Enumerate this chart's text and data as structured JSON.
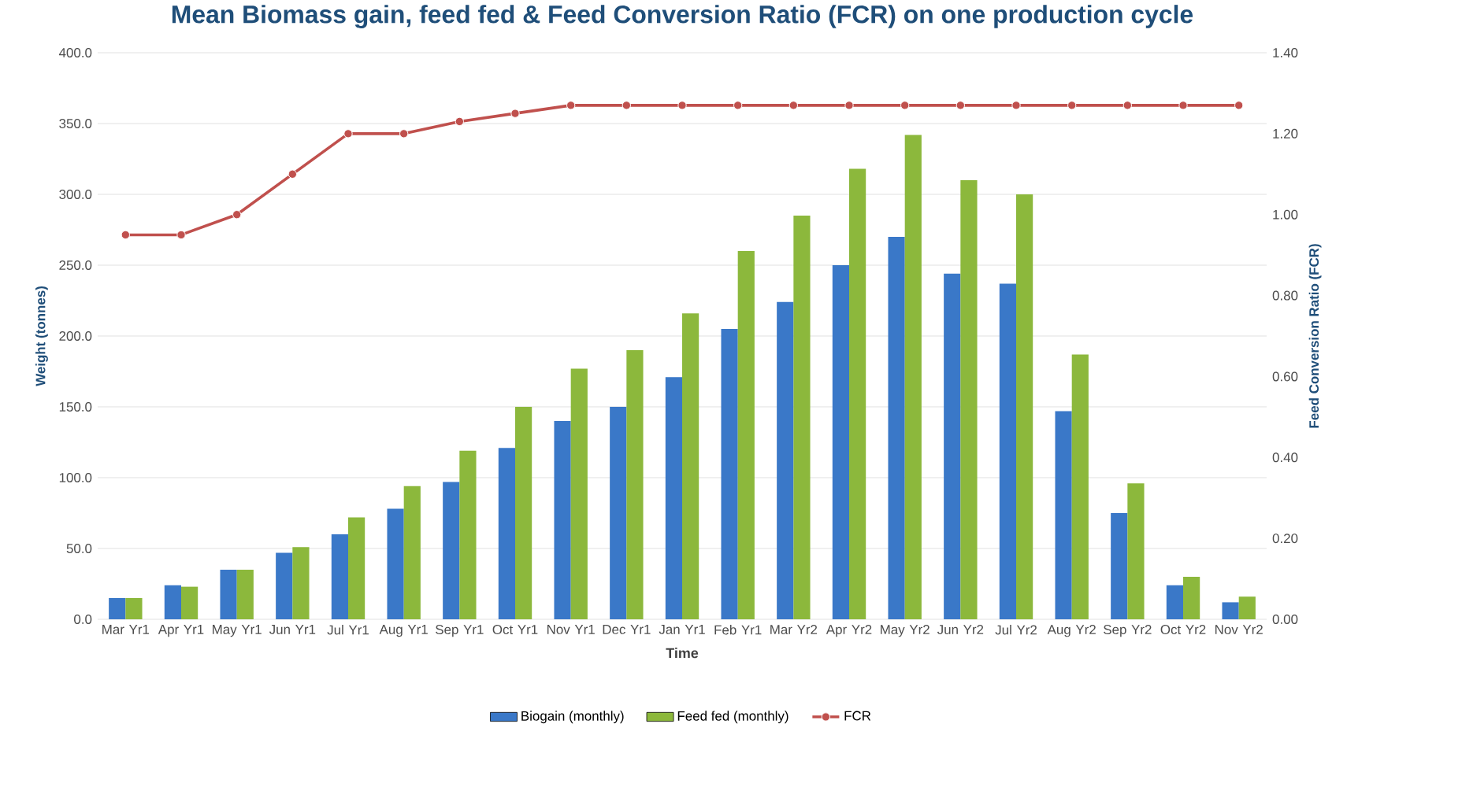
{
  "chart_data": {
    "type": "bar",
    "title": "Mean Biomass gain, feed fed & Feed Conversion Ratio (FCR) on one production cycle",
    "xlabel": "Time",
    "ylabel": "Weight (tonnes)",
    "y2label": "Feed Conversion Ratio (FCR)",
    "categories": [
      "Mar Yr1",
      "Apr Yr1",
      "May Yr1",
      "Jun Yr1",
      "Jul Yr1",
      "Aug Yr1",
      "Sep Yr1",
      "Oct Yr1",
      "Nov Yr1",
      "Dec Yr1",
      "Jan Yr1",
      "Feb Yr1",
      "Mar Yr2",
      "Apr Yr2",
      "May Yr2",
      "Jun Yr2",
      "Jul Yr2",
      "Aug Yr2",
      "Sep Yr2",
      "Oct Yr2",
      "Nov Yr2"
    ],
    "series": [
      {
        "name": "Biogain (monthly)",
        "color": "#3a78c8",
        "values": [
          15,
          24,
          35,
          47,
          60,
          78,
          97,
          121,
          140,
          150,
          171,
          205,
          224,
          250,
          270,
          244,
          237,
          147,
          75,
          24,
          12
        ]
      },
      {
        "name": "Feed fed (monthly)",
        "color": "#8cb83c",
        "values": [
          15,
          23,
          35,
          51,
          72,
          94,
          119,
          150,
          177,
          190,
          216,
          260,
          285,
          318,
          342,
          310,
          300,
          187,
          96,
          30,
          16
        ]
      },
      {
        "name": "FCR",
        "type": "line",
        "axis": "y2",
        "color": "#c0504d",
        "marker": "circle",
        "values": [
          0.95,
          0.95,
          1.0,
          1.1,
          1.2,
          1.2,
          1.23,
          1.25,
          1.27,
          1.27,
          1.27,
          1.27,
          1.27,
          1.27,
          1.27,
          1.27,
          1.27,
          1.27,
          1.27,
          1.27,
          1.27
        ]
      }
    ],
    "ylim": [
      0,
      400
    ],
    "yticks": [
      {
        "value": 0,
        "label": "0.0"
      },
      {
        "value": 50,
        "label": "50.0"
      },
      {
        "value": 100,
        "label": "100.0"
      },
      {
        "value": 150,
        "label": "150.0"
      },
      {
        "value": 200,
        "label": "200.0"
      },
      {
        "value": 250,
        "label": "250.0"
      },
      {
        "value": 300,
        "label": "300.0"
      },
      {
        "value": 350,
        "label": "350.0"
      },
      {
        "value": 400,
        "label": "400.0"
      }
    ],
    "y2lim": [
      0,
      1.4
    ],
    "y2ticks": [
      {
        "value": 0,
        "label": "0.00"
      },
      {
        "value": 0.2,
        "label": "0.20"
      },
      {
        "value": 0.4,
        "label": "0.40"
      },
      {
        "value": 0.6,
        "label": "0.60"
      },
      {
        "value": 0.8,
        "label": "0.80"
      },
      {
        "value": 1.0,
        "label": "1.00"
      },
      {
        "value": 1.2,
        "label": "1.20"
      },
      {
        "value": 1.4,
        "label": "1.40"
      }
    ],
    "grid": "y",
    "legend": "bottom"
  }
}
